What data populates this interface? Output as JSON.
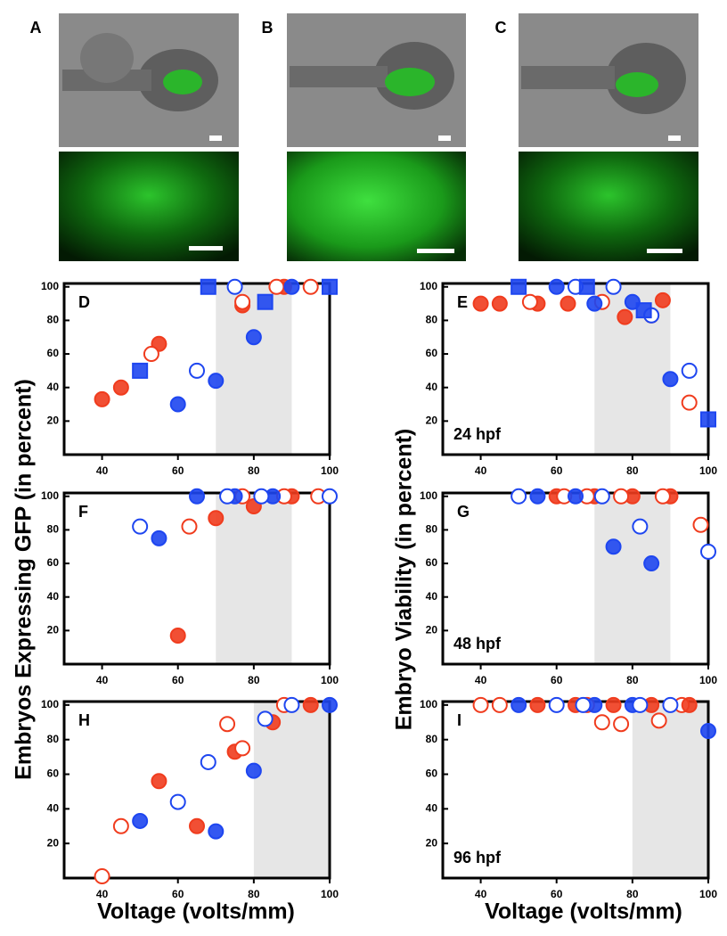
{
  "image_panels": [
    {
      "label": "A"
    },
    {
      "label": "B"
    },
    {
      "label": "C"
    }
  ],
  "shared_labels": {
    "left_y": "Embryos Expressing GFP (in percent)",
    "right_y": "Embryo Viability (in percent)",
    "x": "Voltage (volts/mm)"
  },
  "chart_data": [
    {
      "type": "scatter",
      "panel_label": "D",
      "xlim": [
        30,
        100
      ],
      "ylim": [
        0,
        102
      ],
      "xticks": [
        40,
        60,
        80,
        100
      ],
      "yticks": [
        20,
        40,
        60,
        80,
        100
      ],
      "shaded_range": [
        70,
        90
      ],
      "series": [
        {
          "color": "#f03c1e",
          "marker": "circle",
          "filled": true,
          "x": [
            40,
            45,
            55,
            77,
            88
          ],
          "values": [
            33,
            40,
            66,
            89,
            100
          ]
        },
        {
          "color": "#f03c1e",
          "marker": "circle",
          "filled": false,
          "x": [
            53,
            77,
            86,
            95
          ],
          "values": [
            60,
            91,
            100,
            100
          ]
        },
        {
          "color": "#1e46f0",
          "marker": "circle",
          "filled": true,
          "x": [
            60,
            70,
            80,
            90
          ],
          "values": [
            30,
            44,
            70,
            100
          ]
        },
        {
          "color": "#1e46f0",
          "marker": "circle",
          "filled": false,
          "x": [
            65,
            75
          ],
          "values": [
            50,
            100
          ]
        },
        {
          "color": "#1e46f0",
          "marker": "square",
          "filled": true,
          "x": [
            50,
            68,
            83,
            100
          ],
          "values": [
            50,
            100,
            91,
            100
          ]
        }
      ]
    },
    {
      "type": "scatter",
      "panel_label": "E",
      "annotation": "24 hpf",
      "xlim": [
        30,
        100
      ],
      "ylim": [
        0,
        102
      ],
      "xticks": [
        40,
        60,
        80,
        100
      ],
      "yticks": [
        20,
        40,
        60,
        80,
        100
      ],
      "shaded_range": [
        70,
        90
      ],
      "series": [
        {
          "color": "#f03c1e",
          "marker": "circle",
          "filled": true,
          "x": [
            40,
            45,
            55,
            63,
            78,
            88
          ],
          "values": [
            90,
            90,
            90,
            90,
            82,
            92
          ]
        },
        {
          "color": "#f03c1e",
          "marker": "circle",
          "filled": false,
          "x": [
            53,
            72,
            85,
            95
          ],
          "values": [
            91,
            91,
            83,
            31
          ]
        },
        {
          "color": "#1e46f0",
          "marker": "circle",
          "filled": true,
          "x": [
            60,
            70,
            80,
            90
          ],
          "values": [
            100,
            90,
            91,
            45
          ]
        },
        {
          "color": "#1e46f0",
          "marker": "circle",
          "filled": false,
          "x": [
            65,
            75,
            85,
            95
          ],
          "values": [
            100,
            100,
            83,
            50
          ]
        },
        {
          "color": "#1e46f0",
          "marker": "square",
          "filled": true,
          "x": [
            50,
            68,
            83,
            100
          ],
          "values": [
            100,
            100,
            86,
            21
          ]
        }
      ]
    },
    {
      "type": "scatter",
      "panel_label": "F",
      "xlim": [
        30,
        100
      ],
      "ylim": [
        0,
        102
      ],
      "xticks": [
        40,
        60,
        80,
        100
      ],
      "yticks": [
        20,
        40,
        60,
        80,
        100
      ],
      "shaded_range": [
        70,
        90
      ],
      "series": [
        {
          "color": "#f03c1e",
          "marker": "circle",
          "filled": true,
          "x": [
            60,
            70,
            80,
            90
          ],
          "values": [
            17,
            87,
            94,
            100
          ]
        },
        {
          "color": "#f03c1e",
          "marker": "circle",
          "filled": false,
          "x": [
            63,
            77,
            88,
            97
          ],
          "values": [
            82,
            100,
            100,
            100
          ]
        },
        {
          "color": "#1e46f0",
          "marker": "circle",
          "filled": true,
          "x": [
            55,
            65,
            75,
            85
          ],
          "values": [
            75,
            100,
            100,
            100
          ]
        },
        {
          "color": "#1e46f0",
          "marker": "circle",
          "filled": false,
          "x": [
            50,
            73,
            82,
            100
          ],
          "values": [
            82,
            100,
            100,
            100
          ]
        }
      ]
    },
    {
      "type": "scatter",
      "panel_label": "G",
      "annotation": "48 hpf",
      "xlim": [
        30,
        100
      ],
      "ylim": [
        0,
        102
      ],
      "xticks": [
        40,
        60,
        80,
        100
      ],
      "yticks": [
        20,
        40,
        60,
        80,
        100
      ],
      "shaded_range": [
        70,
        90
      ],
      "series": [
        {
          "color": "#f03c1e",
          "marker": "circle",
          "filled": true,
          "x": [
            60,
            70,
            80,
            90
          ],
          "values": [
            100,
            100,
            100,
            100
          ]
        },
        {
          "color": "#f03c1e",
          "marker": "circle",
          "filled": false,
          "x": [
            62,
            68,
            77,
            88,
            98
          ],
          "values": [
            100,
            100,
            100,
            100,
            83
          ]
        },
        {
          "color": "#1e46f0",
          "marker": "circle",
          "filled": true,
          "x": [
            55,
            65,
            75,
            85
          ],
          "values": [
            100,
            100,
            70,
            60
          ]
        },
        {
          "color": "#1e46f0",
          "marker": "circle",
          "filled": false,
          "x": [
            50,
            72,
            82,
            100
          ],
          "values": [
            100,
            100,
            82,
            67
          ]
        }
      ]
    },
    {
      "type": "scatter",
      "panel_label": "H",
      "xlim": [
        30,
        100
      ],
      "ylim": [
        0,
        102
      ],
      "xticks": [
        40,
        60,
        80,
        100
      ],
      "yticks": [
        20,
        40,
        60,
        80,
        100
      ],
      "shaded_range": [
        80,
        100
      ],
      "series": [
        {
          "color": "#f03c1e",
          "marker": "circle",
          "filled": true,
          "x": [
            55,
            65,
            75,
            85,
            95
          ],
          "values": [
            56,
            30,
            73,
            90,
            100
          ]
        },
        {
          "color": "#f03c1e",
          "marker": "circle",
          "filled": false,
          "x": [
            40,
            45,
            73,
            77,
            88
          ],
          "values": [
            1,
            30,
            89,
            75,
            100
          ]
        },
        {
          "color": "#1e46f0",
          "marker": "circle",
          "filled": true,
          "x": [
            50,
            70,
            80,
            100
          ],
          "values": [
            33,
            27,
            62,
            100
          ]
        },
        {
          "color": "#1e46f0",
          "marker": "circle",
          "filled": false,
          "x": [
            60,
            68,
            83,
            90
          ],
          "values": [
            44,
            67,
            92,
            100
          ]
        }
      ]
    },
    {
      "type": "scatter",
      "panel_label": "I",
      "annotation": "96 hpf",
      "xlim": [
        30,
        100
      ],
      "ylim": [
        0,
        102
      ],
      "xticks": [
        40,
        60,
        80,
        100
      ],
      "yticks": [
        20,
        40,
        60,
        80,
        100
      ],
      "shaded_range": [
        80,
        100
      ],
      "series": [
        {
          "color": "#f03c1e",
          "marker": "circle",
          "filled": false,
          "x": [
            40,
            45,
            68,
            72,
            77,
            87,
            93
          ],
          "values": [
            100,
            100,
            100,
            90,
            89,
            91,
            100
          ]
        },
        {
          "color": "#f03c1e",
          "marker": "circle",
          "filled": true,
          "x": [
            55,
            65,
            75,
            85,
            95
          ],
          "values": [
            100,
            100,
            100,
            100,
            100
          ]
        },
        {
          "color": "#1e46f0",
          "marker": "circle",
          "filled": true,
          "x": [
            50,
            70,
            80,
            100
          ],
          "values": [
            100,
            100,
            100,
            85
          ]
        },
        {
          "color": "#1e46f0",
          "marker": "circle",
          "filled": false,
          "x": [
            60,
            67,
            82,
            90
          ],
          "values": [
            100,
            100,
            100,
            100
          ]
        }
      ]
    }
  ]
}
